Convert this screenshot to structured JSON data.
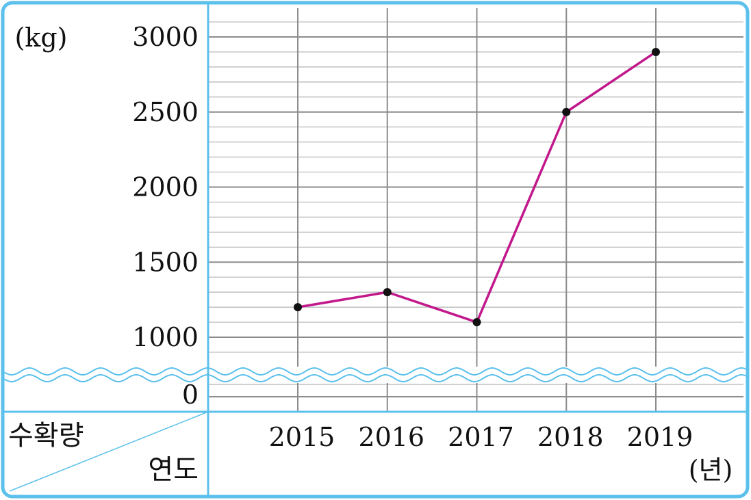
{
  "chart_data": {
    "type": "line",
    "y_unit": "(kg)",
    "x_unit": "(년)",
    "header_top": "수확량",
    "header_bottom": "연도",
    "categories": [
      "2015",
      "2016",
      "2017",
      "2018",
      "2019"
    ],
    "values": [
      1200,
      1300,
      1100,
      2500,
      2900
    ],
    "ylim": [
      1000,
      3000
    ],
    "y_ticks": [
      {
        "value": 3000,
        "label": "3000"
      },
      {
        "value": 2500,
        "label": "2500"
      },
      {
        "value": 2000,
        "label": "2000"
      },
      {
        "value": 1500,
        "label": "1500"
      },
      {
        "value": 1000,
        "label": "1000"
      }
    ],
    "zero_label": "0",
    "minor_step": 100,
    "axis_break": true,
    "grid": true,
    "colors": {
      "line": "#c2188b",
      "marker": "#111111",
      "frame": "#5bc0eb",
      "grid_major": "#8c8c8c",
      "grid_minor": "#b3b3b3"
    }
  }
}
